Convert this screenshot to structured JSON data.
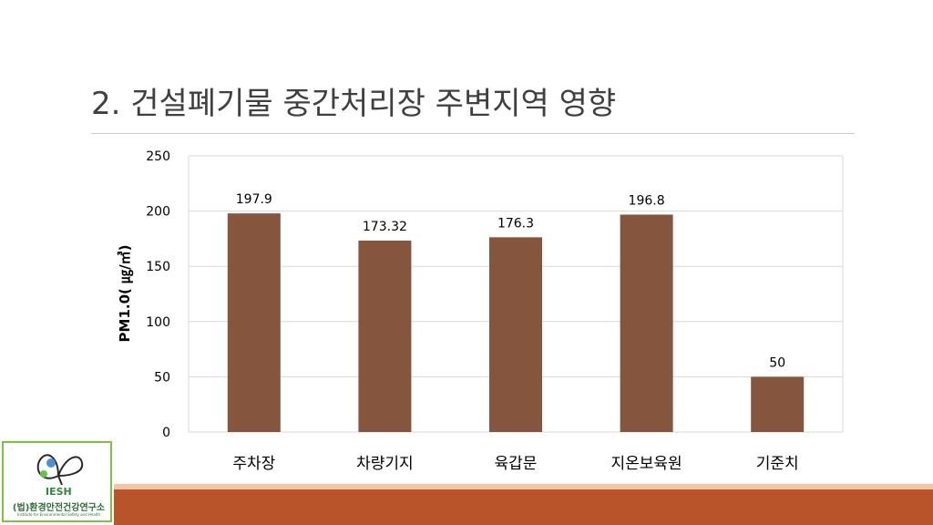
{
  "slide": {
    "title": "2. 건설폐기물 중간처리장 주변지역 영향"
  },
  "logo": {
    "abbr": "IESH",
    "name": "(법)환경안전건강연구소",
    "subtitle": "Institute for Environmental Safety and Health"
  },
  "colors": {
    "bar": "#85553e",
    "band": "#b9542a",
    "band_light": "#f2c4a8",
    "logo_border": "#7cc242"
  },
  "chart_data": {
    "type": "bar",
    "categories": [
      "주차장",
      "차량기지",
      "육갑문",
      "지온보육원",
      "기준치"
    ],
    "values": [
      197.9,
      173.32,
      176.3,
      196.8,
      50
    ],
    "data_labels": [
      "197.9",
      "173.32",
      "176.3",
      "196.8",
      "50"
    ],
    "ylabel": "PM1.0( ㎍/㎥)",
    "ylim": [
      0,
      250
    ],
    "yticks": [
      0,
      50,
      100,
      150,
      200,
      250
    ],
    "grid": true,
    "legend": "none"
  }
}
